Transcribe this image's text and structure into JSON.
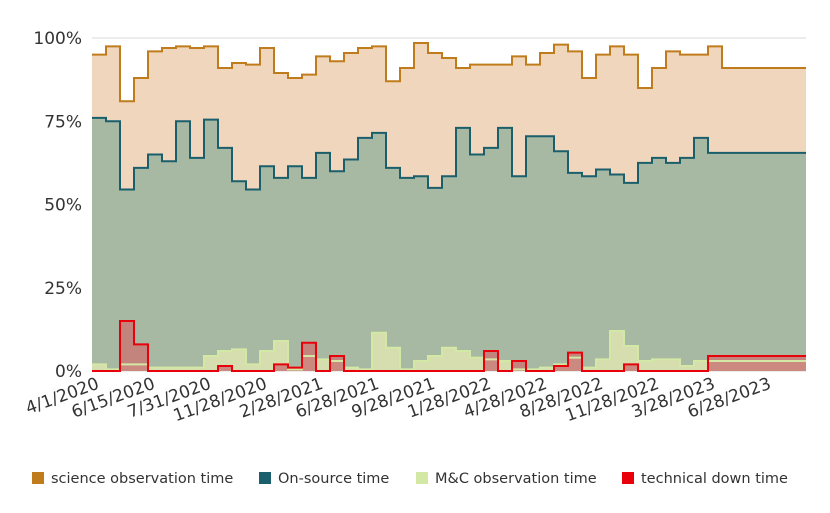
{
  "chart_data": {
    "type": "area",
    "step": true,
    "title": "",
    "xlabel": "",
    "ylabel": "",
    "ylim": [
      0,
      100
    ],
    "yticks": [
      0,
      25,
      50,
      75,
      100
    ],
    "ytick_labels": [
      "0%",
      "25%",
      "50%",
      "75%",
      "100%"
    ],
    "xtick_labels": [
      "4/1/2020",
      "6/15/2020",
      "7/31/2020",
      "11/28/2020",
      "2/28/2021",
      "6/28/2021",
      "9/28/2021",
      "1/28/2022",
      "4/28/2022",
      "8/28/2022",
      "11/28/2022",
      "3/28/2023",
      "6/28/2023"
    ],
    "xtick_positions": [
      0,
      4,
      8,
      12,
      16,
      20,
      24,
      28,
      32,
      36,
      40,
      44,
      48
    ],
    "n_intervals": 51,
    "grid": true,
    "legend_position": "bottom",
    "series": [
      {
        "name": "science observation time",
        "color": "#c07c1c",
        "fill": "#f0d6bc",
        "values": [
          95,
          97.5,
          81,
          88,
          96,
          97,
          97.5,
          97,
          97.5,
          91,
          92.5,
          92,
          97,
          89.5,
          88,
          89,
          94.5,
          93,
          95.5,
          97,
          97.5,
          87,
          91,
          98.5,
          95.5,
          94,
          91,
          92,
          92,
          92,
          94.5,
          92,
          95.5,
          98,
          96,
          88,
          95,
          97.5,
          95,
          85,
          91,
          96,
          95,
          95,
          97.5,
          91,
          91,
          91,
          91,
          91,
          91
        ]
      },
      {
        "name": "On-source time",
        "color": "#1a5f6b",
        "fill": "#a8b9a3",
        "values": [
          76,
          75,
          54.5,
          61,
          65,
          63,
          75,
          64,
          75.5,
          67,
          57,
          54.5,
          61.5,
          58,
          61.5,
          58,
          65.5,
          60,
          63.5,
          70,
          71.5,
          61,
          58,
          58.5,
          55,
          58.5,
          73,
          65,
          67,
          73,
          58.5,
          70.5,
          70.5,
          66,
          59.5,
          58.5,
          60.5,
          59,
          56.5,
          62.5,
          64,
          62.5,
          64,
          70,
          65.5,
          65.5,
          65.5,
          65.5,
          65.5,
          65.5,
          65.5
        ]
      },
      {
        "name": "M&C observation time",
        "color": "#d4e8a6",
        "fill": "#d6ddae",
        "values": [
          2,
          0.5,
          2,
          2,
          1,
          1,
          1,
          1,
          4.5,
          6,
          6.5,
          2,
          6,
          9,
          0.5,
          4.5,
          3.5,
          3,
          1,
          0.5,
          11.5,
          7,
          0.5,
          3,
          4.5,
          7,
          6,
          4,
          3.5,
          3,
          0.5,
          0.5,
          1,
          2,
          4,
          1,
          3.5,
          12,
          7.5,
          3,
          3.5,
          3.5,
          1.5,
          3,
          3,
          3,
          3,
          3,
          3,
          3,
          3
        ]
      },
      {
        "name": "technical down time",
        "color": "#e8000b",
        "fill": "#c97a78",
        "values": [
          0,
          0,
          15,
          8,
          0,
          0,
          0,
          0,
          0,
          1.5,
          0,
          0,
          0,
          2,
          1,
          8.5,
          0,
          4.5,
          0,
          0,
          0,
          0,
          0,
          0,
          0,
          0,
          0,
          0,
          6,
          0,
          3,
          0,
          0,
          1.5,
          5.5,
          0,
          0,
          0,
          2,
          0,
          0,
          0,
          0,
          0,
          4.5,
          4.5,
          4.5,
          4.5,
          4.5,
          4.5,
          4.5
        ]
      }
    ]
  }
}
